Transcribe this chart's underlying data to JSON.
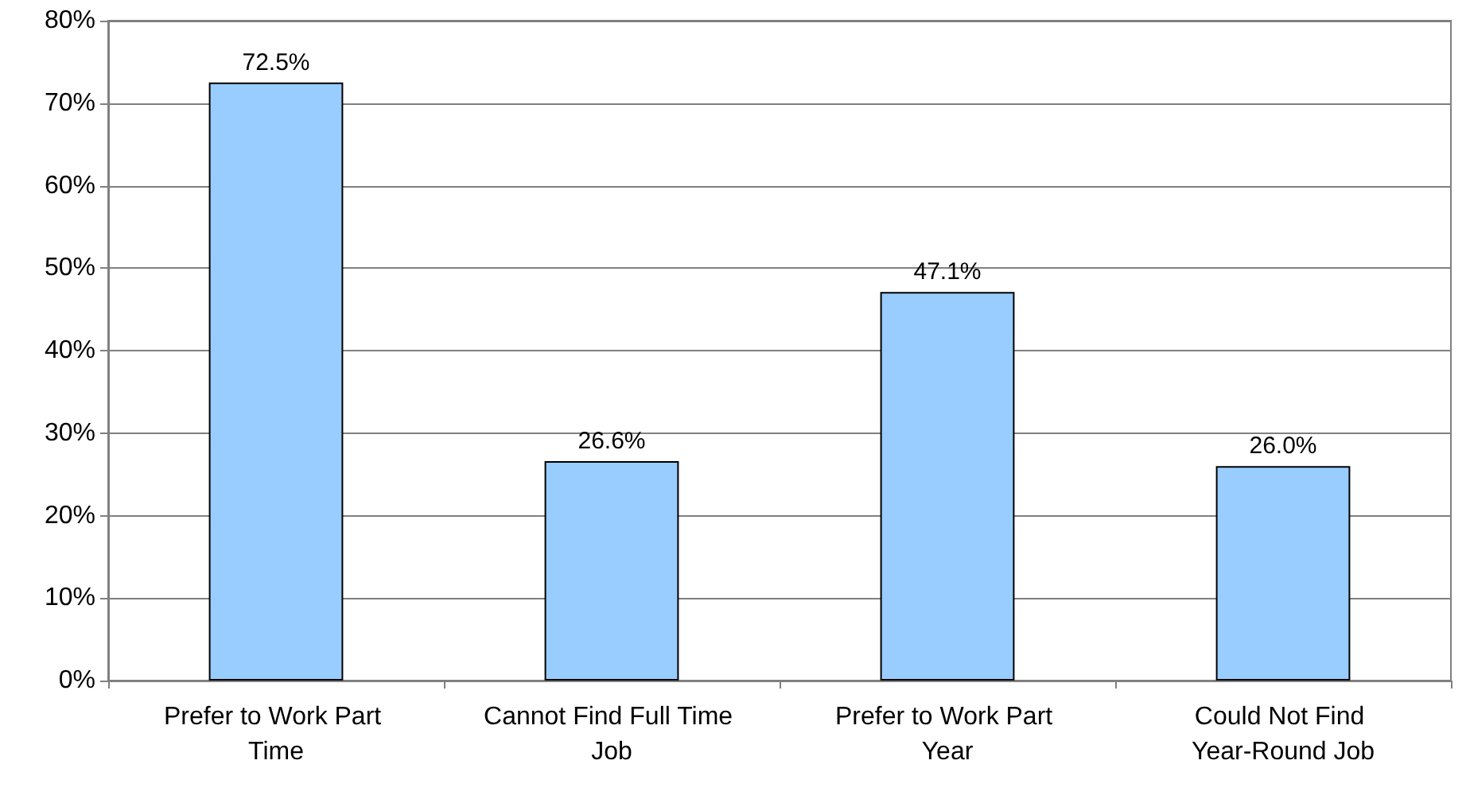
{
  "chart_data": {
    "type": "bar",
    "categories": [
      "Prefer to Work Part Time",
      "Cannot Find Full Time Job",
      "Prefer to Work Part Year",
      "Could Not Find Year-Round Job"
    ],
    "values": [
      72.5,
      26.6,
      47.1,
      26.0
    ],
    "value_labels": [
      "72.5%",
      "26.6%",
      "47.1%",
      "26.0%"
    ],
    "color": "#99ccff",
    "ylim": [
      0,
      80
    ],
    "yticks": [
      {
        "value": 0,
        "label": "0%"
      },
      {
        "value": 10,
        "label": "10%"
      },
      {
        "value": 20,
        "label": "20%"
      },
      {
        "value": 30,
        "label": "30%"
      },
      {
        "value": 40,
        "label": "40%"
      },
      {
        "value": 50,
        "label": "50%"
      },
      {
        "value": 60,
        "label": "60%"
      },
      {
        "value": 70,
        "label": "70%"
      },
      {
        "value": 80,
        "label": "80%"
      }
    ],
    "grid": true
  }
}
